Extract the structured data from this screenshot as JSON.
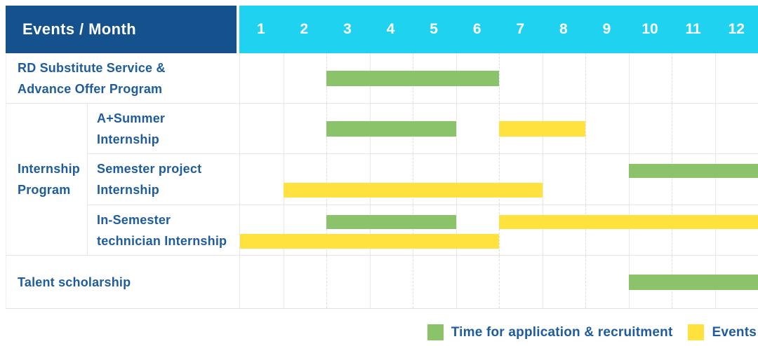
{
  "title_cell": "Events / Month",
  "months": [
    "1",
    "2",
    "3",
    "4",
    "5",
    "6",
    "7",
    "8",
    "9",
    "10",
    "11",
    "12"
  ],
  "colors": {
    "header_navy": "#15518C",
    "header_cyan": "#1FD2F0",
    "bar_green": "#8BC36B",
    "bar_yellow": "#FFE23D",
    "label_blue": "#1E5C9E"
  },
  "legend": [
    {
      "swatch": "green-square-icon",
      "label": "Time for application & recruitment"
    },
    {
      "swatch": "yellow-square-icon",
      "label": "Events"
    }
  ],
  "chart_data": {
    "type": "table",
    "subtype": "gantt-schedule",
    "x_axis": {
      "unit": "month",
      "range": [
        1,
        12
      ],
      "ticks": [
        "1",
        "2",
        "3",
        "4",
        "5",
        "6",
        "7",
        "8",
        "9",
        "10",
        "11",
        "12"
      ]
    },
    "series": [
      {
        "name": "Time for application & recruitment",
        "color": "#8BC36B"
      },
      {
        "name": "Events",
        "color": "#FFE23D"
      }
    ],
    "group": {
      "label": "Internship Program",
      "label_lines": [
        "Internship",
        "Program"
      ],
      "row_span": [
        2,
        4
      ]
    },
    "rows": [
      {
        "group": null,
        "label": "RD Substitute Service & Advance Offer Program",
        "label_lines": [
          "RD Substitute Service &",
          "Advance Offer Program"
        ],
        "bars": [
          {
            "series": "Time for application & recruitment",
            "start_month": 3,
            "end_month": 6,
            "track": "middle"
          }
        ]
      },
      {
        "group": "Internship Program",
        "label": "A+Summer Internship",
        "label_lines": [
          "A+Summer",
          "Internship"
        ],
        "bars": [
          {
            "series": "Time for application & recruitment",
            "start_month": 3,
            "end_month": 5,
            "track": "middle"
          },
          {
            "series": "Events",
            "start_month": 7,
            "end_month": 8,
            "track": "middle"
          }
        ]
      },
      {
        "group": "Internship Program",
        "label": "Semester project Internship",
        "label_lines": [
          "Semester project",
          "Internship"
        ],
        "bars": [
          {
            "series": "Time for application & recruitment",
            "start_month": 10,
            "end_month": 12,
            "track": "top"
          },
          {
            "series": "Events",
            "start_month": 2,
            "end_month": 7,
            "track": "bottom"
          }
        ]
      },
      {
        "group": "Internship Program",
        "label": "In-Semester technician Internship",
        "label_lines": [
          "In-Semester",
          "technician Internship"
        ],
        "bars": [
          {
            "series": "Time for application & recruitment",
            "start_month": 3,
            "end_month": 5,
            "track": "top"
          },
          {
            "series": "Events",
            "start_month": 7,
            "end_month": 12,
            "track": "top"
          },
          {
            "series": "Events",
            "start_month": 1,
            "end_month": 6,
            "track": "bottom"
          }
        ]
      },
      {
        "group": null,
        "label": "Talent scholarship",
        "label_lines": [
          "Talent scholarship"
        ],
        "bars": [
          {
            "series": "Time for application & recruitment",
            "start_month": 10,
            "end_month": 12,
            "track": "middle"
          }
        ]
      }
    ],
    "legend_position": "bottom-right",
    "grid": true
  }
}
